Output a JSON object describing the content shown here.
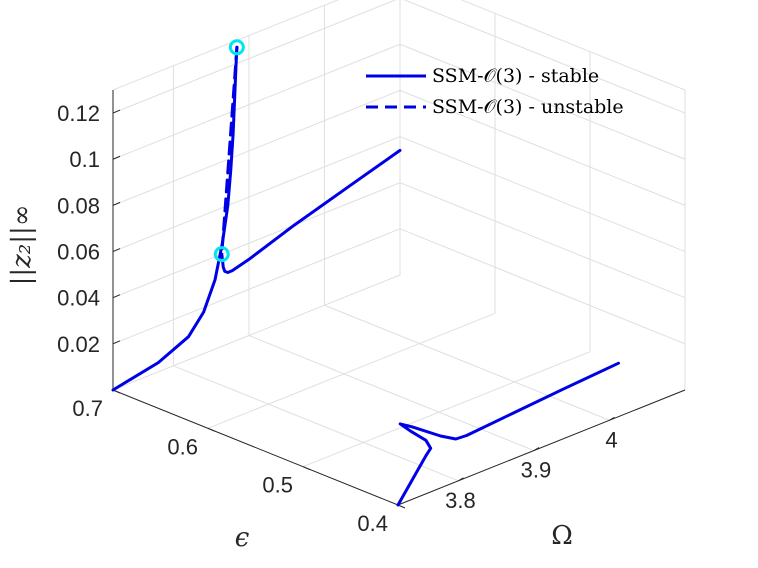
{
  "chart_data": {
    "type": "line",
    "projection": "3d",
    "title": "",
    "xlabel": "Ω",
    "ylabel": "ϵ",
    "zlabel": "||z₂||∞",
    "xlim": [
      3.72,
      4.1
    ],
    "ylim": [
      0.4,
      0.7
    ],
    "zlim": [
      0,
      0.13
    ],
    "x_ticks": [
      "3.8",
      "3.9",
      "4"
    ],
    "y_ticks": [
      "0.4",
      "0.5",
      "0.6",
      "0.7"
    ],
    "z_ticks": [
      "0.02",
      "0.04",
      "0.06",
      "0.08",
      "0.1",
      "0.12"
    ],
    "grid": true,
    "legend_position": "top-right",
    "colors": {
      "curve": "#0000e6",
      "marker": "#00e5ee",
      "axis": "#262626",
      "grid": "#dfdfdf"
    },
    "series": [
      {
        "name": "SSM-𝒪(3) - stable",
        "style": "solid",
        "plane": "epsilon=0.7",
        "x": [
          3.72,
          3.78,
          3.82,
          3.84,
          3.855,
          3.865,
          3.872,
          3.876,
          3.879,
          3.881,
          3.883,
          3.884
        ],
        "z": [
          0.0,
          0.004,
          0.01,
          0.018,
          0.03,
          0.045,
          0.06,
          0.075,
          0.09,
          0.105,
          0.12,
          0.127
        ]
      },
      {
        "name": "",
        "style": "solid",
        "plane": "epsilon=0.7",
        "x": [
          3.864,
          3.866,
          3.868,
          3.872,
          3.878,
          3.9,
          3.96,
          4.03,
          4.1
        ],
        "z": [
          0.04,
          0.034,
          0.032,
          0.031,
          0.031,
          0.033,
          0.04,
          0.047,
          0.054
        ]
      },
      {
        "name": "SSM-𝒪(3) - unstable",
        "style": "dashed",
        "plane": "epsilon=0.7",
        "x": [
          3.884,
          3.874,
          3.864
        ],
        "z": [
          0.127,
          0.083,
          0.04
        ]
      },
      {
        "name": "",
        "style": "solid",
        "plane": "z=0",
        "x": [
          3.72,
          3.76,
          3.79,
          3.82,
          3.835,
          3.845,
          3.85,
          3.855,
          3.858,
          3.862,
          3.867,
          3.88,
          3.95,
          4.02,
          4.1
        ],
        "y": [
          0.4,
          0.42,
          0.435,
          0.45,
          0.457,
          0.47,
          0.49,
          0.505,
          0.495,
          0.468,
          0.456,
          0.455,
          0.46,
          0.465,
          0.47
        ]
      }
    ],
    "markers": [
      {
        "x": 3.884,
        "z": 0.127,
        "plane": "epsilon=0.7",
        "color": "#00e5ee"
      },
      {
        "x": 3.864,
        "z": 0.04,
        "plane": "epsilon=0.7",
        "color": "#00e5ee"
      }
    ]
  }
}
